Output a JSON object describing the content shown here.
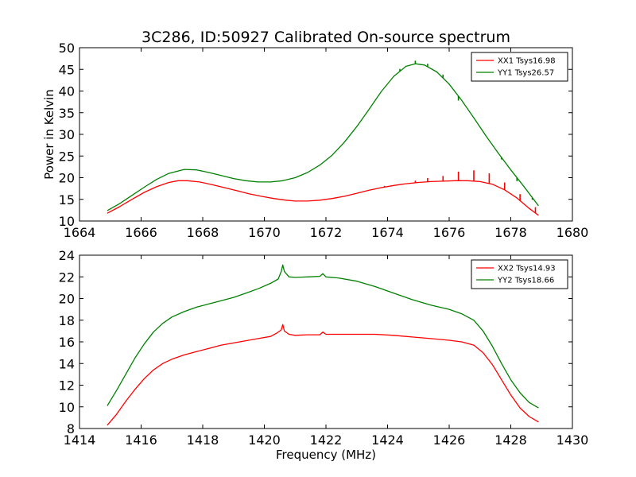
{
  "figure": {
    "title": "3C286, ID:50927 Calibrated On-source spectrum"
  },
  "chart_data": [
    {
      "type": "line",
      "title": "3C286, ID:50927 Calibrated On-source spectrum",
      "xlabel": "",
      "ylabel": "Power in Kelvin",
      "xlim": [
        1664,
        1680
      ],
      "ylim": [
        10,
        50
      ],
      "xticks": [
        "1664",
        "1666",
        "1668",
        "1670",
        "1672",
        "1674",
        "1676",
        "1678",
        "1680"
      ],
      "yticks": [
        "10",
        "15",
        "20",
        "25",
        "30",
        "35",
        "40",
        "45",
        "50"
      ],
      "legend": "top-right",
      "series": [
        {
          "name": "XX1 Tsys16.98",
          "color": "#ff0000",
          "x": [
            1664.9,
            1665.3,
            1665.7,
            1666.1,
            1666.5,
            1666.9,
            1667.2,
            1667.5,
            1667.9,
            1668.3,
            1668.7,
            1669.1,
            1669.5,
            1669.9,
            1670.3,
            1670.7,
            1671.0,
            1671.4,
            1671.8,
            1672.2,
            1672.6,
            1673.0,
            1673.4,
            1673.8,
            1674.2,
            1674.6,
            1675.0,
            1675.4,
            1675.8,
            1676.2,
            1676.6,
            1677.0,
            1677.4,
            1677.8,
            1678.2,
            1678.6,
            1678.9
          ],
          "y": [
            11.8,
            13.3,
            15.0,
            16.6,
            17.9,
            18.9,
            19.3,
            19.3,
            19.0,
            18.4,
            17.7,
            17.0,
            16.3,
            15.7,
            15.2,
            14.8,
            14.6,
            14.6,
            14.8,
            15.2,
            15.7,
            16.4,
            17.1,
            17.7,
            18.2,
            18.6,
            18.9,
            19.1,
            19.2,
            19.3,
            19.3,
            19.1,
            18.5,
            17.2,
            15.3,
            12.9,
            11.3
          ],
          "spikes": [
            {
              "x": 1673.9,
              "y": 18.1
            },
            {
              "x": 1674.4,
              "y": 18.5
            },
            {
              "x": 1674.9,
              "y": 19.3
            },
            {
              "x": 1675.3,
              "y": 19.9
            },
            {
              "x": 1675.8,
              "y": 20.4
            },
            {
              "x": 1676.3,
              "y": 21.4
            },
            {
              "x": 1676.8,
              "y": 21.7
            },
            {
              "x": 1677.3,
              "y": 21.0
            },
            {
              "x": 1677.8,
              "y": 18.9
            },
            {
              "x": 1678.3,
              "y": 16.2
            },
            {
              "x": 1678.8,
              "y": 13.2
            }
          ]
        },
        {
          "name": "YY1 Tsys26.57",
          "color": "#008000",
          "x": [
            1664.9,
            1665.3,
            1665.7,
            1666.1,
            1666.5,
            1666.9,
            1667.4,
            1667.8,
            1668.2,
            1668.6,
            1669.0,
            1669.4,
            1669.8,
            1670.2,
            1670.6,
            1671.0,
            1671.4,
            1671.8,
            1672.2,
            1672.6,
            1673.0,
            1673.4,
            1673.8,
            1674.2,
            1674.6,
            1674.9,
            1675.2,
            1675.6,
            1676.0,
            1676.4,
            1676.8,
            1677.2,
            1677.6,
            1678.0,
            1678.4,
            1678.9
          ],
          "y": [
            12.4,
            14.0,
            15.9,
            17.8,
            19.6,
            21.0,
            21.9,
            21.8,
            21.2,
            20.5,
            19.8,
            19.3,
            19.0,
            19.0,
            19.3,
            20.0,
            21.2,
            22.9,
            25.2,
            28.2,
            31.8,
            35.8,
            39.9,
            43.4,
            45.7,
            46.3,
            46.0,
            44.4,
            41.6,
            37.9,
            33.8,
            29.6,
            25.6,
            21.8,
            18.2,
            13.5
          ],
          "spikes": [
            {
              "x": 1674.4,
              "y": 45.1
            },
            {
              "x": 1674.9,
              "y": 47.0
            },
            {
              "x": 1675.3,
              "y": 46.3
            },
            {
              "x": 1675.8,
              "y": 43.8
            },
            {
              "x": 1676.3,
              "y": 37.8
            },
            {
              "x": 1676.8,
              "y": 33.8
            },
            {
              "x": 1677.3,
              "y": 28.6
            },
            {
              "x": 1677.7,
              "y": 24.2
            },
            {
              "x": 1678.2,
              "y": 19.2
            },
            {
              "x": 1678.7,
              "y": 14.9
            }
          ]
        }
      ]
    },
    {
      "type": "line",
      "title": "",
      "xlabel": "Frequency (MHz)",
      "ylabel": "",
      "xlim": [
        1414,
        1430
      ],
      "ylim": [
        8,
        24
      ],
      "xticks": [
        "1414",
        "1416",
        "1418",
        "1420",
        "1422",
        "1424",
        "1426",
        "1428",
        "1430"
      ],
      "yticks": [
        "8",
        "10",
        "12",
        "14",
        "16",
        "18",
        "20",
        "22",
        "24"
      ],
      "legend": "top-right",
      "series": [
        {
          "name": "XX2 Tsys14.93",
          "color": "#ff0000",
          "x": [
            1414.9,
            1415.2,
            1415.5,
            1415.8,
            1416.1,
            1416.4,
            1416.7,
            1417.0,
            1417.4,
            1417.8,
            1418.2,
            1418.6,
            1419.0,
            1419.4,
            1419.8,
            1420.2,
            1420.4,
            1420.55,
            1420.6,
            1420.65,
            1420.8,
            1421.0,
            1421.4,
            1421.8,
            1421.9,
            1422.0,
            1422.4,
            1423.0,
            1423.6,
            1424.2,
            1424.8,
            1425.4,
            1426.0,
            1426.4,
            1426.8,
            1427.1,
            1427.4,
            1427.7,
            1428.0,
            1428.3,
            1428.6,
            1428.9
          ],
          "y": [
            8.3,
            9.3,
            10.5,
            11.6,
            12.6,
            13.4,
            14.0,
            14.4,
            14.8,
            15.1,
            15.4,
            15.7,
            15.9,
            16.1,
            16.3,
            16.5,
            16.8,
            17.1,
            17.6,
            17.0,
            16.7,
            16.6,
            16.65,
            16.65,
            16.9,
            16.7,
            16.7,
            16.7,
            16.7,
            16.6,
            16.45,
            16.3,
            16.15,
            16.0,
            15.7,
            15.0,
            13.9,
            12.5,
            11.1,
            9.9,
            9.1,
            8.6
          ]
        },
        {
          "name": "YY2 Tsys18.66",
          "color": "#008000",
          "x": [
            1414.9,
            1415.2,
            1415.5,
            1415.8,
            1416.1,
            1416.4,
            1416.7,
            1417.0,
            1417.4,
            1417.8,
            1418.2,
            1418.6,
            1419.0,
            1419.4,
            1419.8,
            1420.2,
            1420.45,
            1420.55,
            1420.6,
            1420.65,
            1420.8,
            1421.0,
            1421.4,
            1421.8,
            1421.9,
            1422.0,
            1422.4,
            1423.0,
            1423.6,
            1424.2,
            1424.8,
            1425.4,
            1426.0,
            1426.4,
            1426.8,
            1427.1,
            1427.4,
            1427.7,
            1428.0,
            1428.3,
            1428.6,
            1428.9
          ],
          "y": [
            10.1,
            11.5,
            13.0,
            14.5,
            15.8,
            16.9,
            17.7,
            18.3,
            18.8,
            19.2,
            19.5,
            19.8,
            20.1,
            20.5,
            20.9,
            21.4,
            21.8,
            22.5,
            23.1,
            22.5,
            22.0,
            21.95,
            22.0,
            22.05,
            22.3,
            22.0,
            21.9,
            21.6,
            21.1,
            20.5,
            19.9,
            19.4,
            19.0,
            18.6,
            18.0,
            17.0,
            15.6,
            14.0,
            12.5,
            11.3,
            10.4,
            9.9
          ]
        }
      ]
    }
  ]
}
